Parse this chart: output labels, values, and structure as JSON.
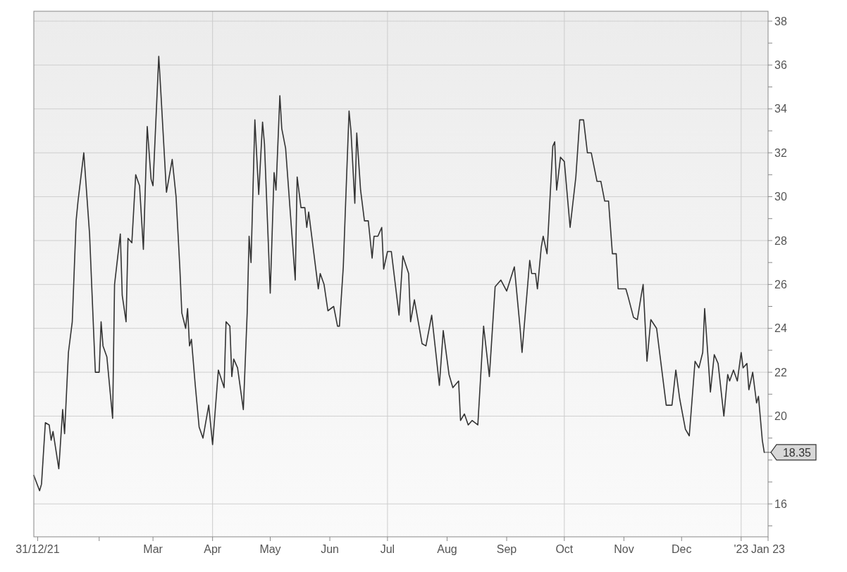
{
  "chart_data": {
    "type": "line",
    "x": [
      "2021-12-29",
      "2022-01-01",
      "2022-01-02",
      "2022-01-04",
      "2022-01-06",
      "2022-01-07",
      "2022-01-08",
      "2022-01-11",
      "2022-01-13",
      "2022-01-14",
      "2022-01-16",
      "2022-01-18",
      "2022-01-20",
      "2022-01-21",
      "2022-01-24",
      "2022-01-27",
      "2022-01-30",
      "2022-02-01",
      "2022-02-02",
      "2022-02-03",
      "2022-02-05",
      "2022-02-08",
      "2022-02-09",
      "2022-02-12",
      "2022-02-13",
      "2022-02-15",
      "2022-02-16",
      "2022-02-18",
      "2022-02-20",
      "2022-02-22",
      "2022-02-24",
      "2022-02-26",
      "2022-02-28",
      "2022-03-01",
      "2022-03-04",
      "2022-03-05",
      "2022-03-08",
      "2022-03-11",
      "2022-03-13",
      "2022-03-15",
      "2022-03-16",
      "2022-03-18",
      "2022-03-19",
      "2022-03-20",
      "2022-03-21",
      "2022-03-23",
      "2022-03-25",
      "2022-03-27",
      "2022-03-30",
      "2022-04-01",
      "2022-04-04",
      "2022-04-07",
      "2022-04-08",
      "2022-04-10",
      "2022-04-11",
      "2022-04-12",
      "2022-04-14",
      "2022-04-17",
      "2022-04-19",
      "2022-04-20",
      "2022-04-21",
      "2022-04-23",
      "2022-04-25",
      "2022-04-27",
      "2022-04-28",
      "2022-05-01",
      "2022-05-03",
      "2022-05-04",
      "2022-05-06",
      "2022-05-07",
      "2022-05-09",
      "2022-05-12",
      "2022-05-14",
      "2022-05-15",
      "2022-05-17",
      "2022-05-19",
      "2022-05-20",
      "2022-05-21",
      "2022-05-26",
      "2022-05-27",
      "2022-05-29",
      "2022-05-31",
      "2022-06-03",
      "2022-06-05",
      "2022-06-06",
      "2022-06-08",
      "2022-06-09",
      "2022-06-11",
      "2022-06-12",
      "2022-06-14",
      "2022-06-15",
      "2022-06-17",
      "2022-06-19",
      "2022-06-21",
      "2022-06-23",
      "2022-06-24",
      "2022-06-26",
      "2022-06-28",
      "2022-06-29",
      "2022-07-01",
      "2022-07-03",
      "2022-07-07",
      "2022-07-09",
      "2022-07-12",
      "2022-07-13",
      "2022-07-15",
      "2022-07-19",
      "2022-07-21",
      "2022-07-24",
      "2022-07-28",
      "2022-07-30",
      "2022-08-02",
      "2022-08-04",
      "2022-08-07",
      "2022-08-08",
      "2022-08-10",
      "2022-08-12",
      "2022-08-14",
      "2022-08-17",
      "2022-08-20",
      "2022-08-23",
      "2022-08-26",
      "2022-08-29",
      "2022-09-01",
      "2022-09-05",
      "2022-09-08",
      "2022-09-09",
      "2022-09-13",
      "2022-09-14",
      "2022-09-16",
      "2022-09-17",
      "2022-09-19",
      "2022-09-20",
      "2022-09-22",
      "2022-09-25",
      "2022-09-26",
      "2022-09-27",
      "2022-09-29",
      "2022-10-01",
      "2022-10-04",
      "2022-10-07",
      "2022-10-09",
      "2022-10-11",
      "2022-10-13",
      "2022-10-15",
      "2022-10-18",
      "2022-10-20",
      "2022-10-22",
      "2022-10-24",
      "2022-10-26",
      "2022-10-28",
      "2022-10-29",
      "2022-11-02",
      "2022-11-03",
      "2022-11-06",
      "2022-11-08",
      "2022-11-10",
      "2022-11-11",
      "2022-11-13",
      "2022-11-15",
      "2022-11-18",
      "2022-11-23",
      "2022-11-26",
      "2022-11-28",
      "2022-11-30",
      "2022-12-03",
      "2022-12-05",
      "2022-12-08",
      "2022-12-10",
      "2022-12-12",
      "2022-12-13",
      "2022-12-16",
      "2022-12-18",
      "2022-12-20",
      "2022-12-23",
      "2022-12-25",
      "2022-12-26",
      "2022-12-28",
      "2022-12-30",
      "2023-01-01",
      "2023-01-02",
      "2023-01-04",
      "2023-01-05",
      "2023-01-07",
      "2023-01-09",
      "2023-01-10",
      "2023-01-12",
      "2023-01-13"
    ],
    "series": [
      {
        "color": "#333333",
        "values": [
          17.3,
          16.6,
          16.9,
          19.7,
          19.6,
          18.9,
          19.3,
          17.6,
          20.3,
          19.2,
          22.9,
          24.3,
          28.9,
          29.8,
          32.0,
          28.3,
          22.0,
          22.0,
          24.3,
          23.2,
          22.7,
          19.9,
          26.0,
          28.3,
          25.5,
          24.3,
          28.1,
          27.9,
          31.0,
          30.5,
          27.6,
          33.2,
          30.8,
          30.5,
          36.4,
          34.9,
          30.2,
          31.7,
          30.0,
          26.7,
          24.7,
          24.0,
          24.9,
          23.2,
          23.5,
          21.4,
          19.5,
          19.0,
          20.5,
          18.7,
          22.1,
          21.3,
          24.3,
          24.1,
          21.8,
          22.6,
          22.2,
          20.3,
          24.7,
          28.2,
          27.0,
          33.5,
          30.1,
          33.4,
          32.4,
          25.6,
          31.1,
          30.3,
          34.6,
          33.1,
          32.2,
          28.6,
          26.2,
          30.9,
          29.5,
          29.5,
          28.6,
          29.3,
          25.8,
          26.5,
          26.0,
          24.8,
          25.0,
          24.1,
          24.1,
          26.8,
          29.2,
          33.9,
          33.0,
          29.7,
          32.9,
          30.3,
          28.9,
          28.9,
          27.2,
          28.2,
          28.2,
          28.6,
          26.7,
          27.5,
          27.5,
          24.6,
          27.3,
          26.5,
          24.3,
          25.3,
          23.3,
          23.2,
          24.6,
          21.4,
          23.9,
          21.9,
          21.3,
          21.6,
          19.8,
          20.1,
          19.6,
          19.8,
          19.6,
          24.1,
          21.8,
          25.9,
          26.2,
          25.7,
          26.8,
          24.0,
          22.9,
          27.1,
          26.5,
          26.5,
          25.8,
          27.7,
          28.2,
          27.4,
          32.3,
          32.5,
          30.3,
          31.8,
          31.6,
          28.6,
          30.9,
          33.5,
          33.5,
          32.0,
          32.0,
          30.7,
          30.7,
          29.8,
          29.8,
          27.4,
          27.4,
          25.8,
          25.8,
          25.5,
          24.5,
          24.4,
          25.5,
          26.0,
          22.5,
          24.4,
          24.0,
          20.5,
          20.5,
          22.1,
          20.8,
          19.4,
          19.1,
          22.5,
          22.2,
          22.9,
          24.9,
          21.1,
          22.8,
          22.4,
          20.0,
          21.9,
          21.6,
          22.1,
          21.6,
          22.9,
          22.2,
          22.4,
          21.2,
          22.0,
          20.6,
          20.9,
          18.9,
          18.35
        ]
      }
    ],
    "xlim": [
      "2021-12-29",
      "2023-01-15"
    ],
    "xticks": [
      {
        "value": "2021-12-31",
        "label": "31/12/21"
      },
      {
        "value": "2022-02-01",
        "label": null
      },
      {
        "value": "2022-03-01",
        "label": "Mar"
      },
      {
        "value": "2022-04-01",
        "label": "Apr"
      },
      {
        "value": "2022-05-01",
        "label": "May"
      },
      {
        "value": "2022-06-01",
        "label": "Jun"
      },
      {
        "value": "2022-07-01",
        "label": "Jul"
      },
      {
        "value": "2022-08-01",
        "label": "Aug"
      },
      {
        "value": "2022-09-01",
        "label": "Sep"
      },
      {
        "value": "2022-10-01",
        "label": "Oct"
      },
      {
        "value": "2022-11-01",
        "label": "Nov"
      },
      {
        "value": "2022-12-01",
        "label": "Dec"
      },
      {
        "value": "2023-01-01",
        "label": "'23"
      },
      {
        "value": "2023-01-15",
        "label": "Jan 23"
      }
    ],
    "ylim": [
      14.5,
      38.45
    ],
    "yticks": [
      {
        "value": 15,
        "label": null
      },
      16,
      {
        "value": 17,
        "label": null
      },
      {
        "value": 18,
        "label": null
      },
      {
        "value": 19,
        "label": null
      },
      20,
      {
        "value": 21,
        "label": null
      },
      22,
      {
        "value": 23,
        "label": null
      },
      24,
      {
        "value": 25,
        "label": null
      },
      26,
      {
        "value": 27,
        "label": null
      },
      28,
      {
        "value": 29,
        "label": null
      },
      30,
      {
        "value": 31,
        "label": null
      },
      32,
      {
        "value": 33,
        "label": null
      },
      34,
      {
        "value": 35,
        "label": null
      },
      36,
      {
        "value": 37,
        "label": null
      },
      38
    ],
    "grid": "y",
    "ref_lines": [
      {
        "axis": "x",
        "value": "2022-04-01",
        "color": "#cccccc"
      },
      {
        "axis": "x",
        "value": "2022-07-01",
        "color": "#cccccc"
      },
      {
        "axis": "x",
        "value": "2022-10-01",
        "color": "#cccccc"
      },
      {
        "axis": "x",
        "value": "2023-01-01",
        "color": "#cccccc"
      }
    ],
    "annotations": [
      {
        "text": "18.35",
        "x": "2023-01-13",
        "y": 18.35
      }
    ]
  }
}
